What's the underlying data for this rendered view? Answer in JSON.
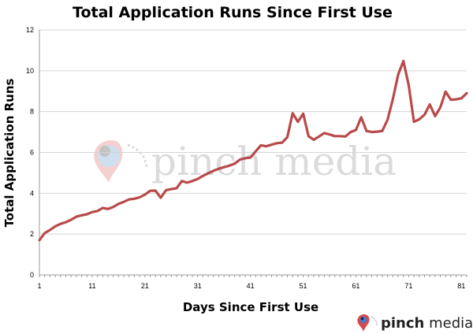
{
  "chart_data": {
    "type": "line",
    "title": "Total Application Runs Since First Use",
    "xlabel": "Days Since First Use",
    "ylabel": "Total Application Runs",
    "xlim": [
      1,
      82
    ],
    "ylim": [
      0,
      12
    ],
    "x_ticks": [
      1,
      11,
      21,
      31,
      41,
      51,
      61,
      71,
      81
    ],
    "y_ticks": [
      0,
      2,
      4,
      6,
      8,
      10,
      12
    ],
    "grid": true,
    "legend": "none",
    "series": [
      {
        "color": "#b84a4a",
        "x": [
          1,
          2,
          3,
          4,
          5,
          6,
          7,
          8,
          9,
          10,
          11,
          12,
          13,
          14,
          15,
          16,
          17,
          18,
          19,
          20,
          21,
          22,
          23,
          24,
          25,
          26,
          27,
          28,
          29,
          30,
          31,
          32,
          33,
          34,
          35,
          36,
          37,
          38,
          39,
          40,
          41,
          42,
          43,
          44,
          45,
          46,
          47,
          48,
          49,
          50,
          51,
          52,
          53,
          54,
          55,
          56,
          57,
          58,
          59,
          60,
          61,
          62,
          63,
          64,
          65,
          66,
          67,
          68,
          69,
          70,
          71,
          72,
          73,
          74,
          75,
          76,
          77,
          78,
          79,
          80,
          81,
          82
        ],
        "y": [
          1.7,
          2.05,
          2.2,
          2.38,
          2.5,
          2.58,
          2.7,
          2.85,
          2.92,
          2.97,
          3.08,
          3.13,
          3.28,
          3.23,
          3.33,
          3.48,
          3.58,
          3.7,
          3.73,
          3.8,
          3.93,
          4.12,
          4.13,
          3.78,
          4.15,
          4.2,
          4.25,
          4.6,
          4.52,
          4.6,
          4.7,
          4.85,
          4.98,
          5.1,
          5.2,
          5.28,
          5.35,
          5.45,
          5.65,
          5.72,
          5.75,
          6.05,
          6.35,
          6.3,
          6.38,
          6.45,
          6.48,
          6.75,
          7.92,
          7.5,
          7.9,
          6.8,
          6.62,
          6.78,
          6.95,
          6.88,
          6.8,
          6.8,
          6.78,
          7.0,
          7.1,
          7.72,
          7.05,
          7.0,
          7.02,
          7.05,
          7.6,
          8.6,
          9.8,
          10.48,
          9.3,
          7.5,
          7.62,
          7.85,
          8.35,
          7.78,
          8.2,
          8.98,
          8.58,
          8.6,
          8.65,
          8.9
        ]
      }
    ],
    "watermark": "pinch media"
  },
  "logo": {
    "pinch": "pinch",
    "media": " media"
  }
}
